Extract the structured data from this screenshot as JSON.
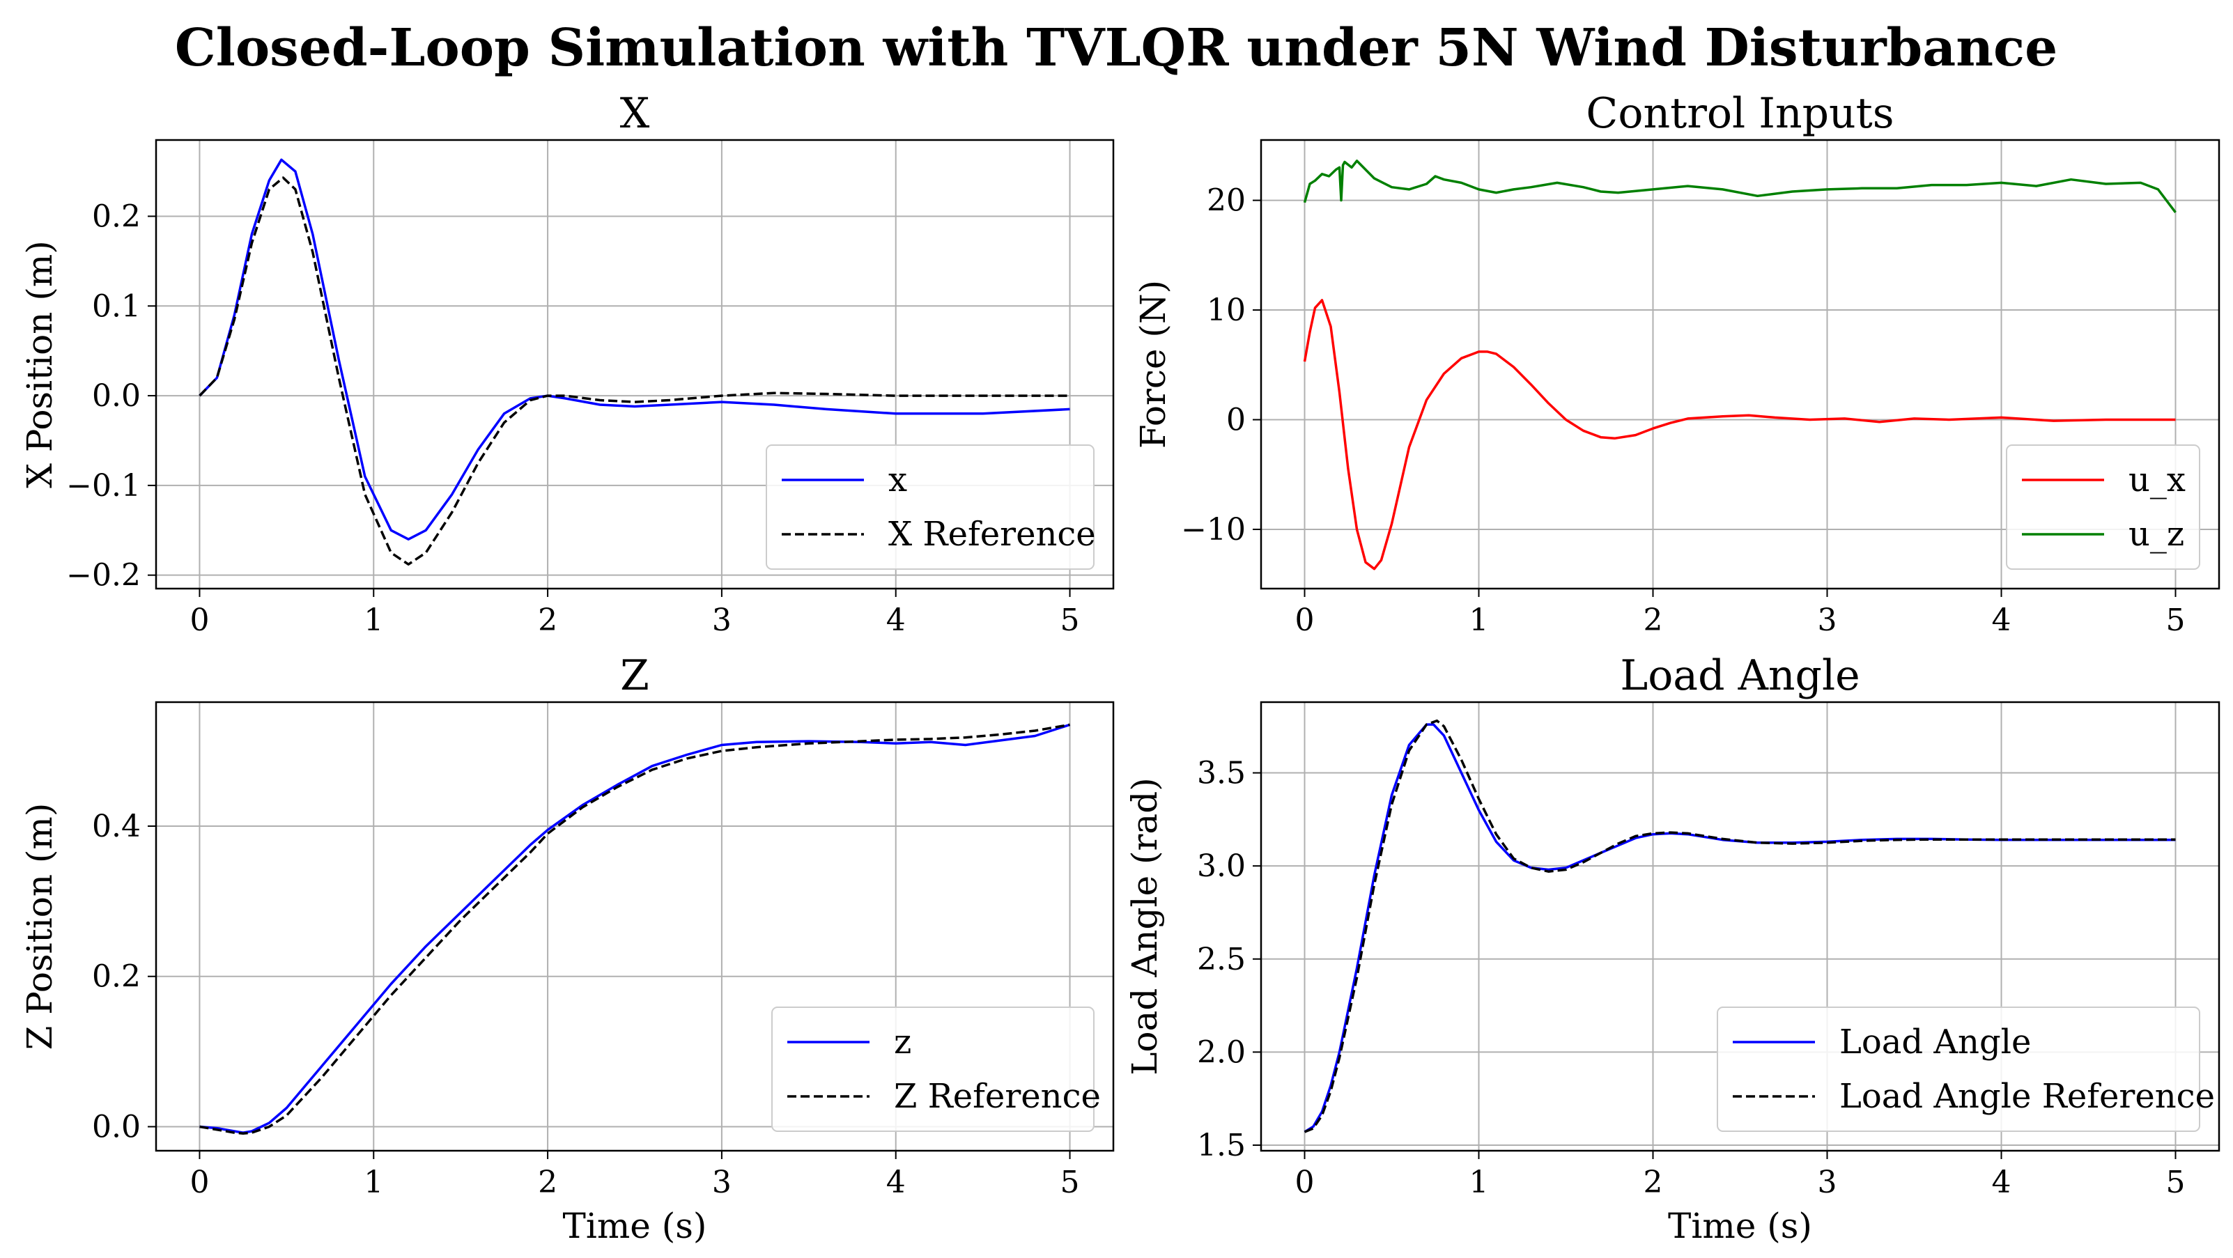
{
  "suptitle": "Closed-Loop Simulation with TVLQR under 5N Wind Disturbance",
  "chart_data": [
    {
      "id": "x",
      "type": "line",
      "title": "X",
      "xlabel": "",
      "ylabel": "X Position (m)",
      "xlim": [
        -0.25,
        5.25
      ],
      "ylim": [
        -0.215,
        0.285
      ],
      "xticks": [
        0,
        1,
        2,
        3,
        4,
        5
      ],
      "xtick_labels": [
        "0",
        "1",
        "2",
        "3",
        "4",
        "5"
      ],
      "yticks": [
        -0.2,
        -0.1,
        0.0,
        0.1,
        0.2
      ],
      "ytick_labels": [
        "−0.2",
        "−0.1",
        "0.0",
        "0.1",
        "0.2"
      ],
      "grid": true,
      "legend": "lower-right",
      "series": [
        {
          "name": "x",
          "color": "#0000ff",
          "style": "solid",
          "x": [
            0,
            0.1,
            0.2,
            0.3,
            0.4,
            0.47,
            0.55,
            0.65,
            0.8,
            0.95,
            1.1,
            1.2,
            1.3,
            1.45,
            1.6,
            1.75,
            1.9,
            2.0,
            2.1,
            2.3,
            2.5,
            2.7,
            3.0,
            3.3,
            3.6,
            4.0,
            4.5,
            5.0
          ],
          "y": [
            0,
            0.02,
            0.09,
            0.18,
            0.24,
            0.263,
            0.25,
            0.18,
            0.04,
            -0.09,
            -0.15,
            -0.16,
            -0.15,
            -0.11,
            -0.06,
            -0.02,
            -0.003,
            0.0,
            -0.003,
            -0.01,
            -0.012,
            -0.01,
            -0.007,
            -0.01,
            -0.015,
            -0.02,
            -0.02,
            -0.015
          ]
        },
        {
          "name": "X Reference",
          "color": "#000000",
          "style": "dashed",
          "x": [
            0,
            0.1,
            0.2,
            0.3,
            0.4,
            0.48,
            0.55,
            0.65,
            0.8,
            0.95,
            1.1,
            1.2,
            1.3,
            1.45,
            1.6,
            1.75,
            1.9,
            2.0,
            2.1,
            2.3,
            2.5,
            2.7,
            3.0,
            3.3,
            3.6,
            4.0,
            4.5,
            5.0
          ],
          "y": [
            0,
            0.02,
            0.085,
            0.17,
            0.23,
            0.243,
            0.23,
            0.16,
            0.02,
            -0.11,
            -0.175,
            -0.188,
            -0.175,
            -0.13,
            -0.075,
            -0.03,
            -0.005,
            0.0,
            0.0,
            -0.005,
            -0.007,
            -0.005,
            0.0,
            0.003,
            0.002,
            0.0,
            0.0,
            0.0
          ]
        }
      ]
    },
    {
      "id": "u",
      "type": "line",
      "title": "Control Inputs",
      "xlabel": "",
      "ylabel": "Force (N)",
      "xlim": [
        -0.25,
        5.25
      ],
      "ylim": [
        -15.4,
        25.5
      ],
      "xticks": [
        0,
        1,
        2,
        3,
        4,
        5
      ],
      "xtick_labels": [
        "0",
        "1",
        "2",
        "3",
        "4",
        "5"
      ],
      "yticks": [
        -10,
        0,
        10,
        20
      ],
      "ytick_labels": [
        "−10",
        "0",
        "10",
        "20"
      ],
      "grid": true,
      "legend": "lower-right",
      "series": [
        {
          "name": "u_x",
          "color": "#ff0000",
          "style": "solid",
          "x": [
            0,
            0.03,
            0.06,
            0.1,
            0.15,
            0.2,
            0.25,
            0.3,
            0.35,
            0.4,
            0.44,
            0.5,
            0.6,
            0.7,
            0.8,
            0.9,
            1.0,
            1.05,
            1.1,
            1.2,
            1.3,
            1.4,
            1.5,
            1.6,
            1.7,
            1.78,
            1.9,
            2.0,
            2.1,
            2.2,
            2.4,
            2.55,
            2.7,
            2.9,
            3.1,
            3.3,
            3.5,
            3.7,
            4.0,
            4.3,
            4.6,
            5.0
          ],
          "y": [
            5.3,
            8,
            10.2,
            10.9,
            8.5,
            2.5,
            -4.5,
            -10,
            -13,
            -13.6,
            -12.8,
            -9.5,
            -2.5,
            1.8,
            4.2,
            5.6,
            6.2,
            6.2,
            6.0,
            4.8,
            3.2,
            1.5,
            0,
            -1.0,
            -1.6,
            -1.7,
            -1.4,
            -0.8,
            -0.3,
            0.1,
            0.3,
            0.4,
            0.2,
            0.0,
            0.1,
            -0.2,
            0.1,
            0.0,
            0.2,
            -0.1,
            0.0,
            0.0
          ]
        },
        {
          "name": "u_z",
          "color": "#008000",
          "style": "solid",
          "x": [
            0,
            0.03,
            0.06,
            0.1,
            0.14,
            0.18,
            0.2,
            0.21,
            0.22,
            0.23,
            0.27,
            0.3,
            0.35,
            0.4,
            0.45,
            0.5,
            0.6,
            0.7,
            0.75,
            0.8,
            0.9,
            1.0,
            1.1,
            1.2,
            1.3,
            1.45,
            1.6,
            1.7,
            1.8,
            2.0,
            2.2,
            2.4,
            2.6,
            2.8,
            3.0,
            3.2,
            3.4,
            3.6,
            3.8,
            4.0,
            4.2,
            4.4,
            4.6,
            4.8,
            4.9,
            5.0
          ],
          "y": [
            19.8,
            21.5,
            21.8,
            22.4,
            22.2,
            22.8,
            23.0,
            20.0,
            23.2,
            23.5,
            23.0,
            23.6,
            22.8,
            22.0,
            21.6,
            21.2,
            21.0,
            21.5,
            22.2,
            21.9,
            21.6,
            21.0,
            20.7,
            21.0,
            21.2,
            21.6,
            21.2,
            20.8,
            20.7,
            21.0,
            21.3,
            21.0,
            20.4,
            20.8,
            21.0,
            21.1,
            21.1,
            21.4,
            21.4,
            21.6,
            21.3,
            21.9,
            21.5,
            21.6,
            21.0,
            18.9
          ]
        }
      ]
    },
    {
      "id": "z",
      "type": "line",
      "title": "Z",
      "xlabel": "Time (s)",
      "ylabel": "Z Position (m)",
      "xlim": [
        -0.25,
        5.25
      ],
      "ylim": [
        -0.032,
        0.565
      ],
      "xticks": [
        0,
        1,
        2,
        3,
        4,
        5
      ],
      "xtick_labels": [
        "0",
        "1",
        "2",
        "3",
        "4",
        "5"
      ],
      "yticks": [
        0.0,
        0.2,
        0.4
      ],
      "ytick_labels": [
        "0.0",
        "0.2",
        "0.4"
      ],
      "grid": true,
      "legend": "lower-right",
      "series": [
        {
          "name": "z",
          "color": "#0000ff",
          "style": "solid",
          "x": [
            0,
            0.1,
            0.2,
            0.25,
            0.3,
            0.4,
            0.5,
            0.7,
            0.9,
            1.1,
            1.3,
            1.5,
            1.7,
            1.9,
            2.0,
            2.2,
            2.4,
            2.6,
            2.8,
            3.0,
            3.2,
            3.5,
            3.8,
            4.0,
            4.2,
            4.4,
            4.6,
            4.8,
            5.0
          ],
          "y": [
            0.0,
            -0.002,
            -0.006,
            -0.008,
            -0.006,
            0.005,
            0.025,
            0.08,
            0.135,
            0.19,
            0.24,
            0.285,
            0.33,
            0.375,
            0.395,
            0.428,
            0.455,
            0.48,
            0.495,
            0.508,
            0.512,
            0.513,
            0.512,
            0.51,
            0.512,
            0.508,
            0.514,
            0.52,
            0.535
          ]
        },
        {
          "name": "Z Reference",
          "color": "#000000",
          "style": "dashed",
          "x": [
            0,
            0.1,
            0.2,
            0.25,
            0.3,
            0.4,
            0.5,
            0.7,
            0.9,
            1.1,
            1.3,
            1.5,
            1.7,
            1.9,
            2.0,
            2.2,
            2.4,
            2.6,
            2.8,
            3.0,
            3.2,
            3.5,
            3.8,
            4.0,
            4.2,
            4.4,
            4.6,
            4.8,
            5.0
          ],
          "y": [
            0.0,
            -0.004,
            -0.008,
            -0.009,
            -0.008,
            0.0,
            0.015,
            0.065,
            0.12,
            0.175,
            0.225,
            0.275,
            0.32,
            0.365,
            0.39,
            0.425,
            0.452,
            0.475,
            0.49,
            0.5,
            0.505,
            0.51,
            0.513,
            0.515,
            0.516,
            0.518,
            0.522,
            0.527,
            0.535
          ]
        }
      ]
    },
    {
      "id": "theta",
      "type": "line",
      "title": "Load Angle",
      "xlabel": "Time (s)",
      "ylabel": "Load Angle (rad)",
      "xlim": [
        -0.25,
        5.25
      ],
      "ylim": [
        1.47,
        3.88
      ],
      "xticks": [
        0,
        1,
        2,
        3,
        4,
        5
      ],
      "xtick_labels": [
        "0",
        "1",
        "2",
        "3",
        "4",
        "5"
      ],
      "yticks": [
        1.5,
        2.0,
        2.5,
        3.0,
        3.5
      ],
      "ytick_labels": [
        "1.5",
        "2.0",
        "2.5",
        "3.0",
        "3.5"
      ],
      "grid": true,
      "legend": "lower-right",
      "series": [
        {
          "name": "Load Angle",
          "color": "#0000ff",
          "style": "solid",
          "x": [
            0,
            0.05,
            0.1,
            0.15,
            0.2,
            0.3,
            0.4,
            0.5,
            0.6,
            0.7,
            0.74,
            0.8,
            0.9,
            1.0,
            1.1,
            1.2,
            1.3,
            1.4,
            1.5,
            1.6,
            1.7,
            1.8,
            1.9,
            2.0,
            2.1,
            2.2,
            2.4,
            2.6,
            2.8,
            3.0,
            3.2,
            3.4,
            3.6,
            3.8,
            4.0,
            4.5,
            5.0
          ],
          "y": [
            1.571,
            1.6,
            1.68,
            1.82,
            2.0,
            2.45,
            2.95,
            3.38,
            3.65,
            3.76,
            3.76,
            3.7,
            3.5,
            3.3,
            3.13,
            3.03,
            2.99,
            2.98,
            2.99,
            3.03,
            3.07,
            3.11,
            3.15,
            3.17,
            3.175,
            3.17,
            3.14,
            3.125,
            3.125,
            3.13,
            3.14,
            3.145,
            3.145,
            3.142,
            3.14,
            3.14,
            3.14
          ]
        },
        {
          "name": "Load Angle Reference",
          "color": "#000000",
          "style": "dashed",
          "x": [
            0,
            0.05,
            0.1,
            0.15,
            0.2,
            0.3,
            0.4,
            0.5,
            0.6,
            0.7,
            0.76,
            0.8,
            0.9,
            1.0,
            1.1,
            1.2,
            1.3,
            1.4,
            1.5,
            1.6,
            1.7,
            1.8,
            1.9,
            2.0,
            2.1,
            2.2,
            2.4,
            2.6,
            2.8,
            3.0,
            3.2,
            3.4,
            3.6,
            3.8,
            4.0,
            4.5,
            5.0
          ],
          "y": [
            1.571,
            1.59,
            1.66,
            1.79,
            1.97,
            2.4,
            2.9,
            3.33,
            3.62,
            3.76,
            3.78,
            3.75,
            3.57,
            3.36,
            3.17,
            3.04,
            2.99,
            2.97,
            2.98,
            3.02,
            3.07,
            3.12,
            3.16,
            3.175,
            3.18,
            3.175,
            3.145,
            3.125,
            3.12,
            3.125,
            3.135,
            3.14,
            3.142,
            3.142,
            3.142,
            3.142,
            3.142
          ]
        }
      ]
    }
  ]
}
